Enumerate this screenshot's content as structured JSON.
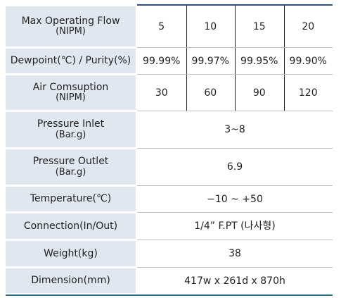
{
  "table": {
    "rows": [
      {
        "label": "Max Operating Flow",
        "unit": "(NIPM)",
        "values": [
          "5",
          "10",
          "15",
          "20"
        ]
      },
      {
        "label": "Dewpoint(℃) / Purity(%)",
        "values": [
          "99.99%",
          "99.97%",
          "99.95%",
          "99.90%"
        ]
      },
      {
        "label": "Air Comsuption",
        "unit": "(NIPM)",
        "values": [
          "30",
          "60",
          "90",
          "120"
        ]
      },
      {
        "label": "Pressure Inlet",
        "unit": "(Bar.g)",
        "value": "3~8"
      },
      {
        "label": "Pressure Outlet",
        "unit": "(Bar.g)",
        "value": "6.9"
      },
      {
        "label": "Temperature(℃)",
        "value": "−10 ~ +50"
      },
      {
        "label": "Connection(In/Out)",
        "value": "1/4” F.PT (나사형)"
      },
      {
        "label": "Weight(kg)",
        "value": "38"
      },
      {
        "label": "Dimension(mm)",
        "value": "417w x 261d x 870h"
      }
    ]
  }
}
